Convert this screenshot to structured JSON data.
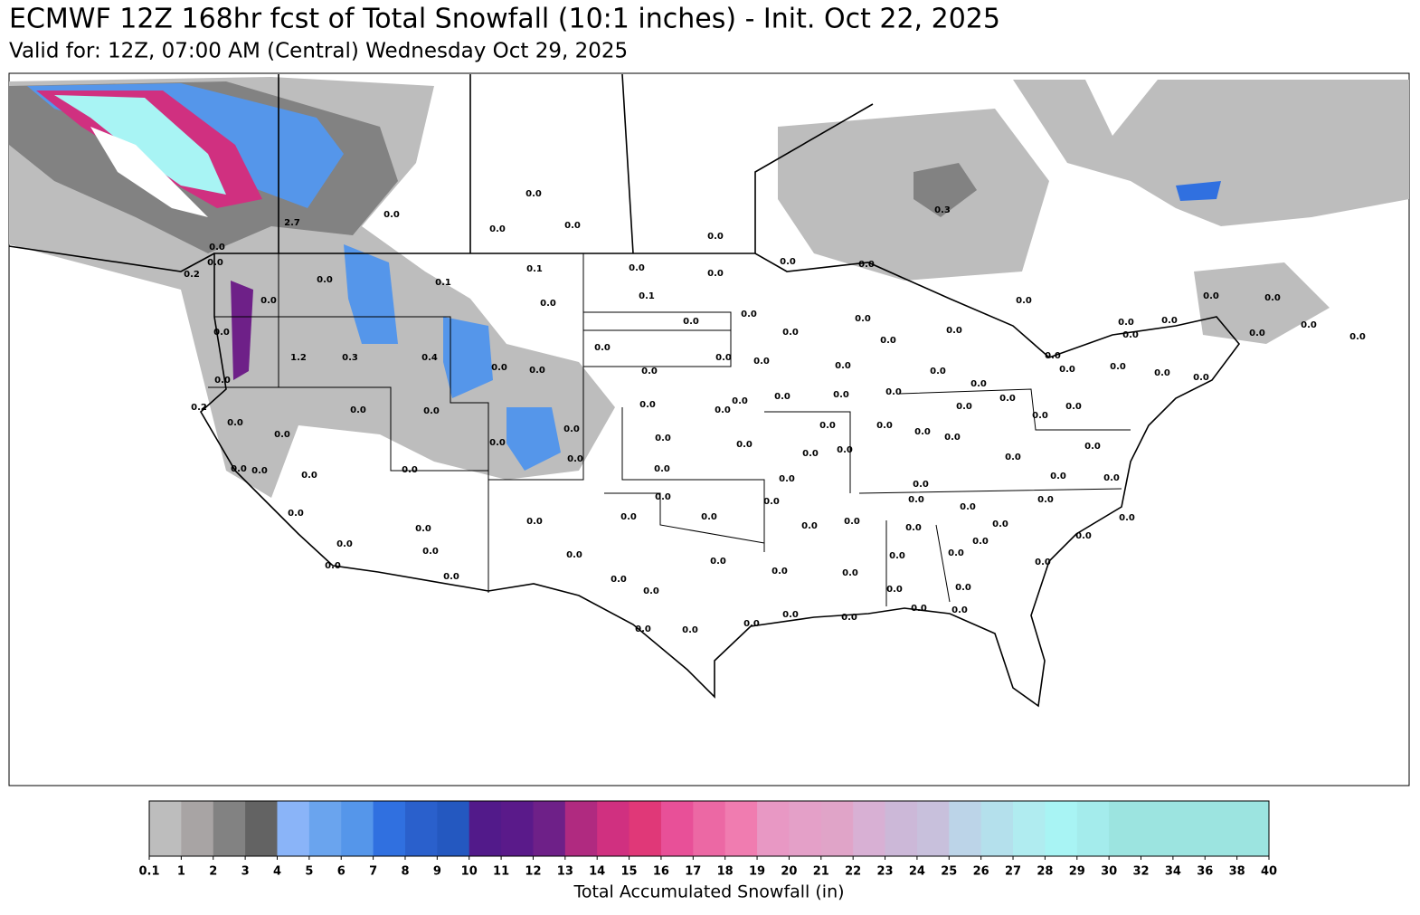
{
  "header": {
    "title": "ECMWF 12Z 168hr fcst of Total Snowfall (10:1 inches) - Init. Oct 22, 2025",
    "subtitle": "Valid for: 12Z, 07:00 AM (Central) Wednesday Oct 29, 2025"
  },
  "map": {
    "labels": [
      "0.0",
      "0.0",
      "0.0",
      "0.0",
      "0.0",
      "0.3",
      "2.7",
      "0.0",
      "0.2",
      "0.0",
      "0.0",
      "0.0",
      "0.0",
      "0.0",
      "0.0",
      "0.0",
      "0.0",
      "0.0",
      "0.0",
      "0.0",
      "0.1",
      "0.0",
      "0.0",
      "0.0",
      "0.1",
      "0.1",
      "0.0",
      "0.0",
      "0.0",
      "0.0",
      "0.0",
      "0.0",
      "0.0",
      "0.0",
      "0.0",
      "0.0",
      "0.0",
      "1.2",
      "0.3",
      "0.4",
      "0.0",
      "0.0",
      "0.0",
      "0.0",
      "0.0",
      "0.0",
      "0.0",
      "0.0",
      "0.0",
      "0.0",
      "0.0",
      "0.0",
      "0.0",
      "0.0",
      "0.0",
      "0.0",
      "0.0",
      "0.0",
      "0.0",
      "0.2",
      "0.0",
      "0.0",
      "0.0",
      "0.0",
      "0.0",
      "0.0",
      "0.0",
      "0.0",
      "0.0",
      "0.0",
      "0.0",
      "0.0",
      "0.0",
      "0.0",
      "0.0",
      "0.0",
      "0.0",
      "0.0",
      "0.0",
      "0.0",
      "0.0",
      "0.0",
      "0.0",
      "0.0",
      "0.0",
      "0.0",
      "0.0",
      "0.0",
      "0.0",
      "0.0",
      "0.0",
      "0.0",
      "0.0",
      "0.0",
      "0.0",
      "0.0",
      "0.0",
      "0.0",
      "0.0",
      "0.0",
      "0.0",
      "0.0",
      "0.0",
      "0.0",
      "0.0",
      "0.0",
      "0.0",
      "0.0",
      "0.0",
      "0.0",
      "0.0",
      "0.0",
      "0.0",
      "0.0",
      "0.0",
      "0.0",
      "0.0",
      "0.0",
      "0.0",
      "0.0",
      "0.0",
      "0.0",
      "0.0",
      "0.0",
      "0.0",
      "0.0",
      "0.0",
      "0.0",
      "0.0",
      "0.0"
    ]
  },
  "colorbar": {
    "label": "Total Accumulated Snowfall (in)",
    "ticks": [
      0.1,
      1,
      2,
      3,
      4,
      5,
      6,
      7,
      8,
      9,
      10,
      11,
      12,
      13,
      14,
      15,
      16,
      17,
      18,
      19,
      20,
      21,
      22,
      23,
      24,
      25,
      26,
      27,
      28,
      29,
      30,
      32,
      34,
      36,
      38,
      40
    ],
    "colors": [
      "#bdbdbd",
      "#a8a4a4",
      "#828282",
      "#636363",
      "#8ab4f8",
      "#6aa4ee",
      "#5596ea",
      "#3070e0",
      "#2a60cc",
      "#2458c0",
      "#521a8a",
      "#5a1a8a",
      "#6e2088",
      "#b02a80",
      "#d03080",
      "#e03878",
      "#e85098",
      "#ec68a4",
      "#f07cb0",
      "#e898c4",
      "#e4a0c8",
      "#e0a4c8",
      "#d8b0d4",
      "#ccb8d8",
      "#c8c0dc",
      "#bcd4e8",
      "#b4e0ec",
      "#b0ecf0",
      "#a8f4f4",
      "#a4ecec",
      "#9ce4e0",
      "#9ce4e0",
      "#9ce4e0",
      "#9ce4e0",
      "#9ce4e0"
    ]
  }
}
